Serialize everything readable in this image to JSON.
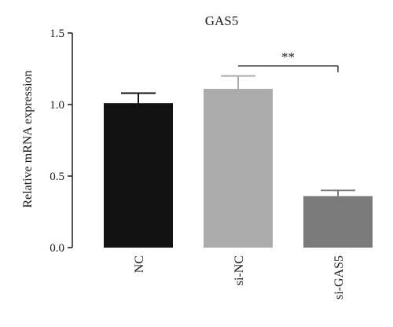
{
  "chart_data": {
    "type": "bar",
    "title": "GAS5",
    "ylabel": "Relative mRNA expression",
    "xlabel": "",
    "ylim": [
      0,
      1.5
    ],
    "yticks": [
      {
        "value": 0.0,
        "label": "0.0"
      },
      {
        "value": 0.5,
        "label": "0.5"
      },
      {
        "value": 1.0,
        "label": "1.0"
      },
      {
        "value": 1.5,
        "label": "1.5"
      }
    ],
    "categories": [
      "NC",
      "si-NC",
      "si-GAS5"
    ],
    "values": [
      1.01,
      1.11,
      0.36
    ],
    "errors": [
      0.07,
      0.09,
      0.04
    ],
    "colors": [
      "#121212",
      "#ababab",
      "#7a7a7a"
    ],
    "grid": false,
    "annotations": [
      {
        "text": "**",
        "from": "si-NC",
        "to": "si-GAS5",
        "y": 1.27
      }
    ]
  }
}
